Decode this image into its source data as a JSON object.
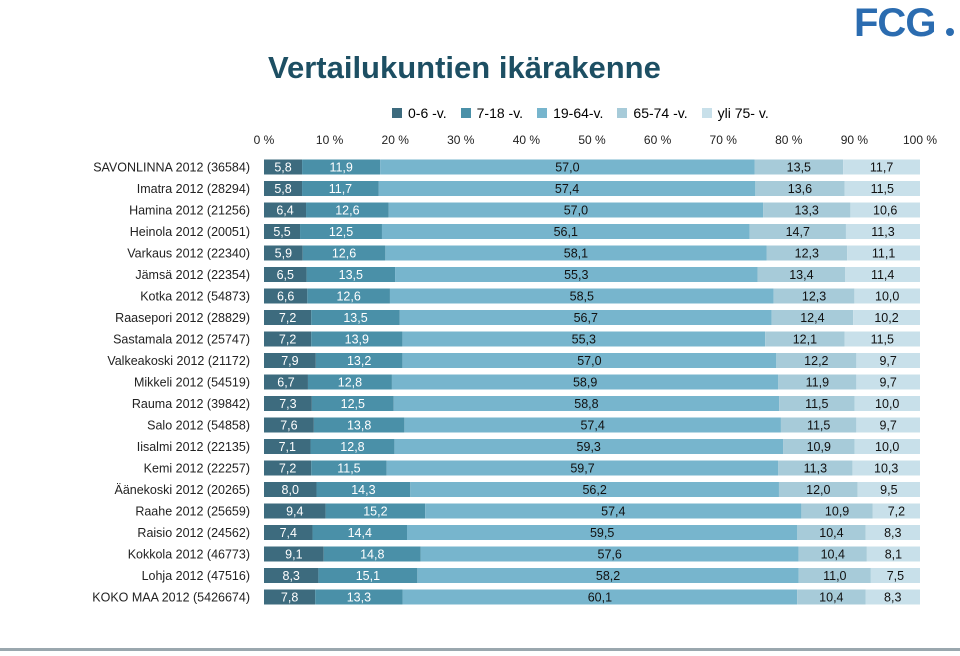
{
  "title": "Vertailukuntien ikärakenne",
  "logo_text": "FCG",
  "chart_data": {
    "type": "bar",
    "orientation": "horizontal",
    "stacked": "percent",
    "title": "Vertailukuntien ikärakenne",
    "xlim": [
      0,
      100
    ],
    "x_ticks": [
      "0 %",
      "10 %",
      "20 %",
      "30 %",
      "40 %",
      "50 %",
      "60 %",
      "70 %",
      "80 %",
      "90 %",
      "100 %"
    ],
    "grid": false,
    "legend": "top",
    "categories": [
      "SAVONLINNA 2012 (36584)",
      "Imatra 2012 (28294)",
      "Hamina 2012 (21256)",
      "Heinola 2012 (20051)",
      "Varkaus 2012 (22340)",
      "Jämsä 2012 (22354)",
      "Kotka 2012 (54873)",
      "Raasepori 2012 (28829)",
      "Sastamala 2012 (25747)",
      "Valkeakoski 2012 (21172)",
      "Mikkeli 2012 (54519)",
      "Rauma 2012 (39842)",
      "Salo 2012 (54858)",
      "Iisalmi 2012 (22135)",
      "Kemi 2012 (22257)",
      "Äänekoski 2012 (20265)",
      "Raahe 2012 (25659)",
      "Raisio 2012 (24562)",
      "Kokkola 2012 (46773)",
      "Lohja 2012 (47516)",
      "KOKO MAA 2012 (5426674)"
    ],
    "series": [
      {
        "name": "0-6 -v.",
        "color": "#3d6b7e",
        "values": [
          5.8,
          5.8,
          6.4,
          5.5,
          5.9,
          6.5,
          6.6,
          7.2,
          7.2,
          7.9,
          6.7,
          7.3,
          7.6,
          7.1,
          7.2,
          8.0,
          9.4,
          7.4,
          9.1,
          8.3,
          7.8
        ],
        "labels": [
          "5,8",
          "5,8",
          "6,4",
          "5,5",
          "5,9",
          "6,5",
          "6,6",
          "7,2",
          "7,2",
          "7,9",
          "6,7",
          "7,3",
          "7,6",
          "7,1",
          "7,2",
          "8,0",
          "9,4",
          "7,4",
          "9,1",
          "8,3",
          "7,8"
        ]
      },
      {
        "name": "7-18 -v.",
        "color": "#4a90a8",
        "values": [
          11.9,
          11.7,
          12.6,
          12.5,
          12.6,
          13.5,
          12.6,
          13.5,
          13.9,
          13.2,
          12.8,
          12.5,
          13.8,
          12.8,
          11.5,
          14.3,
          15.2,
          14.4,
          14.8,
          15.1,
          13.3
        ],
        "labels": [
          "11,9",
          "11,7",
          "12,6",
          "12,5",
          "12,6",
          "13,5",
          "12,6",
          "13,5",
          "13,9",
          "13,2",
          "12,8",
          "12,5",
          "13,8",
          "12,8",
          "11,5",
          "14,3",
          "15,2",
          "14,4",
          "14,8",
          "15,1",
          "13,3"
        ]
      },
      {
        "name": "19-64-v.",
        "color": "#77b5cd",
        "values": [
          57.0,
          57.4,
          57.0,
          56.1,
          58.1,
          55.3,
          58.5,
          56.7,
          55.3,
          57.0,
          58.9,
          58.8,
          57.4,
          59.3,
          59.7,
          56.2,
          57.4,
          59.5,
          57.6,
          58.2,
          60.1
        ],
        "labels": [
          "57,0",
          "57,4",
          "57,0",
          "56,1",
          "58,1",
          "55,3",
          "58,5",
          "56,7",
          "55,3",
          "57,0",
          "58,9",
          "58,8",
          "57,4",
          "59,3",
          "59,7",
          "56,2",
          "57,4",
          "59,5",
          "57,6",
          "58,2",
          "60,1"
        ]
      },
      {
        "name": "65-74 -v.",
        "color": "#a7cbd9",
        "values": [
          13.5,
          13.6,
          13.3,
          14.7,
          12.3,
          13.4,
          12.3,
          12.4,
          12.1,
          12.2,
          11.9,
          11.5,
          11.5,
          10.9,
          11.3,
          12.0,
          10.9,
          10.4,
          10.4,
          11.0,
          10.4
        ],
        "labels": [
          "13,5",
          "13,6",
          "13,3",
          "14,7",
          "12,3",
          "13,4",
          "12,3",
          "12,4",
          "12,1",
          "12,2",
          "11,9",
          "11,5",
          "11,5",
          "10,9",
          "11,3",
          "12,0",
          "10,9",
          "10,4",
          "10,4",
          "11,0",
          "10,4"
        ]
      },
      {
        "name": "yli 75- v.",
        "color": "#c8e0ea",
        "values": [
          11.7,
          11.5,
          10.6,
          11.3,
          11.1,
          11.4,
          10.0,
          10.2,
          11.5,
          9.7,
          9.7,
          10.0,
          9.7,
          10.0,
          10.3,
          9.5,
          7.2,
          8.3,
          8.1,
          7.5,
          8.3
        ],
        "labels": [
          "11,7",
          "11,5",
          "10,6",
          "11,3",
          "11,1",
          "11,4",
          "10,0",
          "10,2",
          "11,5",
          "9,7",
          "9,7",
          "10,0",
          "9,7",
          "10,0",
          "10,3",
          "9,5",
          "7,2",
          "8,3",
          "8,1",
          "7,5",
          "8,3"
        ]
      }
    ]
  }
}
